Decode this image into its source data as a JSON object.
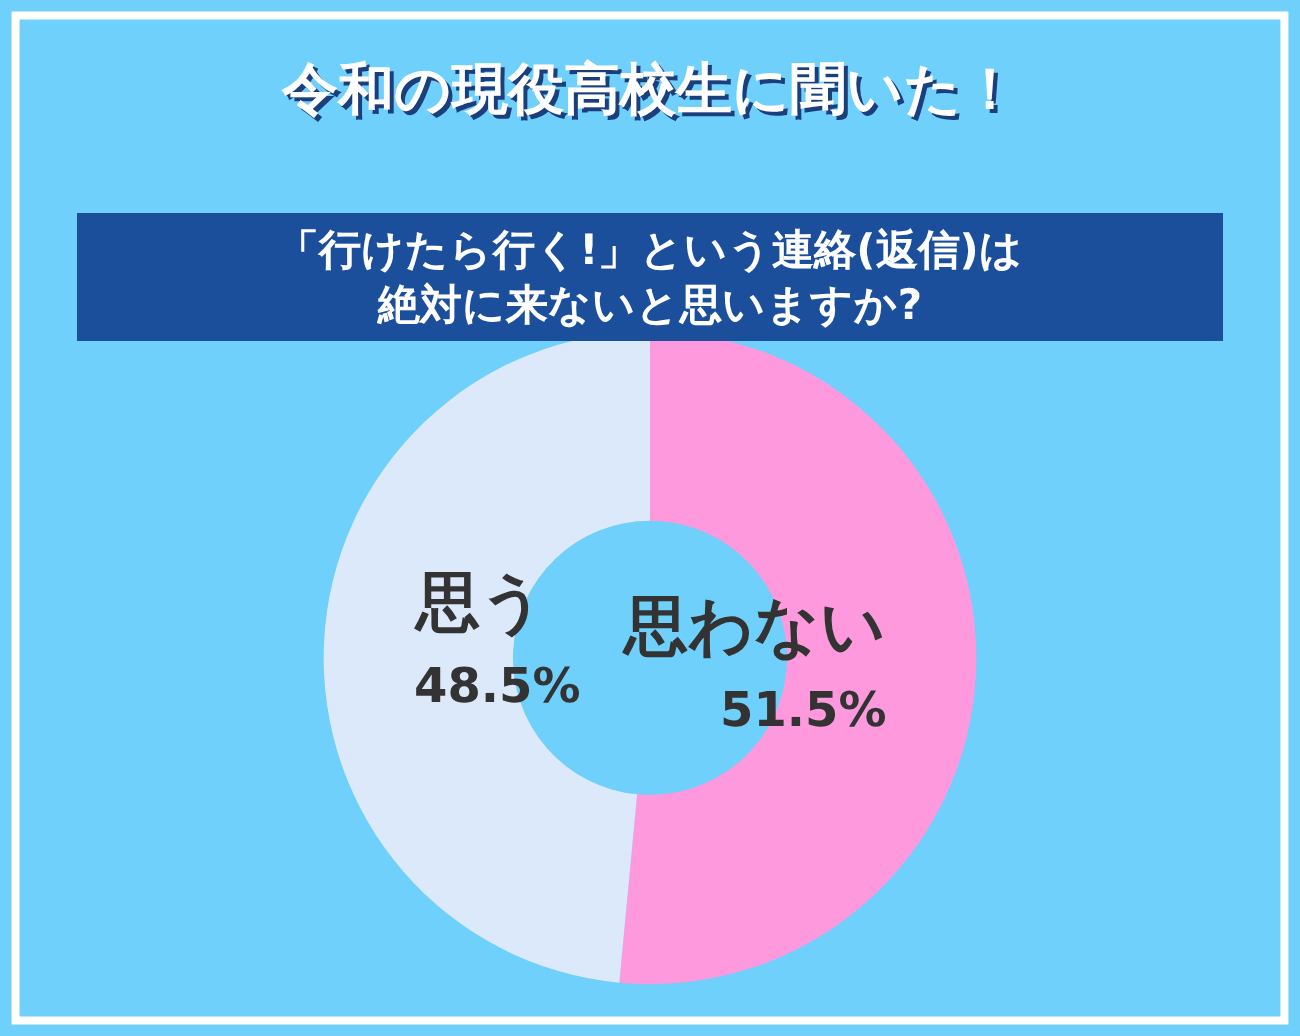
{
  "chart_data": {
    "type": "donut",
    "title": "令和の現役高校生に聞いた！",
    "subtitle": "「行けたら行く!」という連絡(返信)は絶対に来ないと思いますか?",
    "categories": [
      "思わない",
      "思う"
    ],
    "values": [
      51.5,
      48.5
    ],
    "colors": [
      "#ff99dd",
      "#dce9fb"
    ],
    "value_labels": [
      "51.5%",
      "48.5%"
    ],
    "legend": false
  }
}
